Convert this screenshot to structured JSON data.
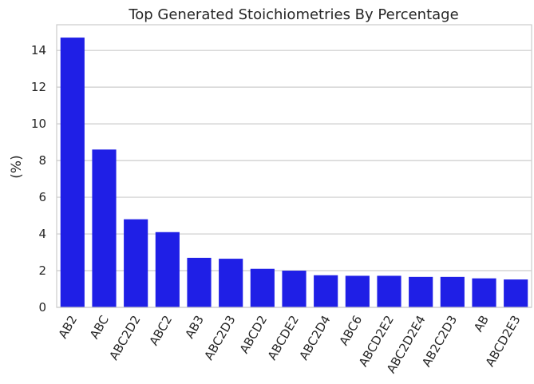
{
  "chart_data": {
    "type": "bar",
    "title": "Top Generated Stoichiometries By Percentage",
    "xlabel": "",
    "ylabel": "(%)",
    "categories": [
      "AB2",
      "ABC",
      "ABC2D2",
      "ABC2",
      "AB3",
      "ABC2D3",
      "ABCD2",
      "ABCDE2",
      "ABC2D4",
      "ABC6",
      "ABCD2E2",
      "ABC2D2E4",
      "AB2C2D3",
      "AB",
      "ABCD2E3"
    ],
    "values": [
      14.7,
      8.6,
      4.8,
      4.1,
      2.7,
      2.65,
      2.1,
      2.0,
      1.75,
      1.72,
      1.72,
      1.66,
      1.66,
      1.58,
      1.52
    ],
    "yticks": [
      0,
      2,
      4,
      6,
      8,
      10,
      12,
      14
    ],
    "ylim": [
      0,
      15.4
    ],
    "grid": "horizontal",
    "bar_color": "#1f1fe6",
    "legend": "none"
  }
}
